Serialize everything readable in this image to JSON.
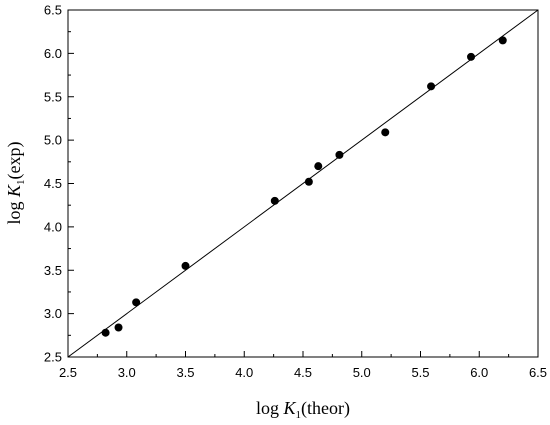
{
  "chart_data": {
    "type": "scatter",
    "title": "",
    "xlabel": {
      "pre": "log ",
      "italic": "K",
      "sub": "1",
      "post": "(theor)"
    },
    "ylabel": {
      "pre": "log ",
      "italic": "K",
      "sub": "1",
      "post": "(exp)"
    },
    "xlim": [
      2.5,
      6.5
    ],
    "ylim": [
      2.5,
      6.5
    ],
    "xticks": [
      "2.5",
      "3.0",
      "3.5",
      "4.0",
      "4.5",
      "5.0",
      "5.5",
      "6.0",
      "6.5"
    ],
    "yticks": [
      "2.5",
      "3.0",
      "3.5",
      "4.0",
      "4.5",
      "5.0",
      "5.5",
      "6.0",
      "6.5"
    ],
    "grid": false,
    "series": [
      {
        "type": "scatter",
        "marker": "filled-circle",
        "color": "#000000",
        "points": [
          [
            2.82,
            2.78
          ],
          [
            2.93,
            2.84
          ],
          [
            3.08,
            3.13
          ],
          [
            3.5,
            3.55
          ],
          [
            4.26,
            4.3
          ],
          [
            4.55,
            4.52
          ],
          [
            4.63,
            4.7
          ],
          [
            4.81,
            4.83
          ],
          [
            5.2,
            5.09
          ],
          [
            5.59,
            5.62
          ],
          [
            5.93,
            5.96
          ],
          [
            6.2,
            6.15
          ]
        ]
      },
      {
        "type": "line",
        "color": "#000000",
        "points": [
          [
            2.5,
            2.5
          ],
          [
            6.5,
            6.5
          ]
        ]
      }
    ]
  }
}
